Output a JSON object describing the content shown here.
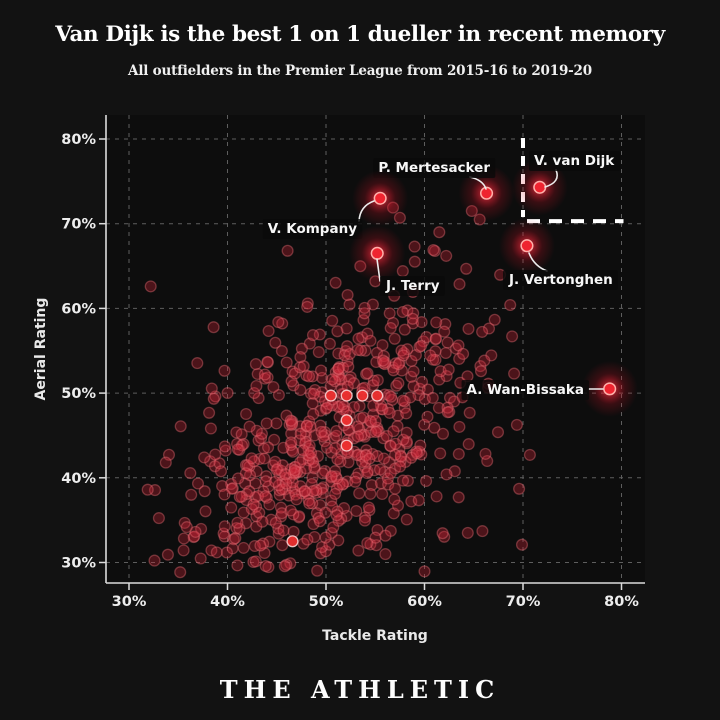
{
  "header": {
    "title": "Van Dijk is the best 1 on 1 dueller in recent memory",
    "subtitle": "All outfielders in the Premier League from 2015-16 to 2019-20"
  },
  "footer": {
    "brand": "THE ATHLETIC"
  },
  "chart_data": {
    "type": "scatter",
    "xlabel": "Tackle Rating",
    "ylabel": "Aerial Rating",
    "x_tick_values": [
      30,
      40,
      50,
      60,
      70,
      80
    ],
    "y_tick_values": [
      30,
      40,
      50,
      60,
      70,
      80
    ],
    "x_tick_labels": [
      "30%",
      "40%",
      "50%",
      "60%",
      "70%",
      "80%"
    ],
    "y_tick_labels": [
      "30%",
      "40%",
      "50%",
      "60%",
      "70%",
      "80%"
    ],
    "xlim": [
      27.7,
      82.4
    ],
    "ylim": [
      27.6,
      82.8
    ],
    "grid": "dashed",
    "highlighted_players": [
      {
        "name": "P. Mertesacker",
        "tackle": 66.3,
        "aerial": 73.6
      },
      {
        "name": "V. van Dijk",
        "tackle": 71.7,
        "aerial": 74.3
      },
      {
        "name": "V. Kompany",
        "tackle": 55.5,
        "aerial": 73.0
      },
      {
        "name": "J. Terry",
        "tackle": 55.2,
        "aerial": 66.5
      },
      {
        "name": "J. Vertonghen",
        "tackle": 70.4,
        "aerial": 67.4
      },
      {
        "name": "A. Wan-Bissaka",
        "tackle": 78.8,
        "aerial": 50.5
      }
    ],
    "highlight_region": {
      "x_min": 70,
      "y_min": 70.3,
      "note": "white dashed corner marking elite 70%/70% zone"
    },
    "bright_points": [
      [
        50.5,
        49.7
      ],
      [
        52.1,
        49.7
      ],
      [
        53.7,
        49.7
      ],
      [
        55.2,
        49.7
      ],
      [
        52.1,
        46.8
      ],
      [
        52.1,
        43.8
      ],
      [
        46.6,
        32.5
      ]
    ],
    "extra_points": [
      [
        56.8,
        71.9
      ],
      [
        57.5,
        70.7
      ],
      [
        64.8,
        71.5
      ],
      [
        65.6,
        70.5
      ],
      [
        59.0,
        67.3
      ],
      [
        60.9,
        66.9
      ],
      [
        62.2,
        66.2
      ],
      [
        61.5,
        69.0
      ],
      [
        57.8,
        64.4
      ],
      [
        55.0,
        63.2
      ],
      [
        32.2,
        62.6
      ],
      [
        31.9,
        38.6
      ],
      [
        68.7,
        60.4
      ],
      [
        69.1,
        52.3
      ],
      [
        70.7,
        42.7
      ],
      [
        69.6,
        38.7
      ],
      [
        69.9,
        32.1
      ],
      [
        64.4,
        33.5
      ]
    ],
    "background_cloud": {
      "count": 640,
      "seed": 20,
      "x_mean": 50.6,
      "x_sd": 7.3,
      "y_mean": 43.6,
      "y_sd": 8.8,
      "correlation": 0.46,
      "x_range": [
        31.2,
        72.3
      ],
      "y_range": [
        28.8,
        69.3
      ]
    },
    "colors": {
      "background": "#121212",
      "plot_background": "#0d0d0d",
      "point_fill": "rgba(198,36,52,0.34)",
      "point_stroke": "rgba(232,110,118,0.40)",
      "bright_fill": "rgba(238,48,48,0.95)",
      "bright_stroke": "rgba(255,218,218,0.85)",
      "highlight_core": "#ef2430",
      "highlight_ring": "#ffb0aa",
      "grid": "#5e5e5e",
      "axis": "#dcdcdc",
      "tick_text": "#ededed",
      "label_text": "#f7f7f7",
      "dashed_box": "#ffffff"
    }
  }
}
